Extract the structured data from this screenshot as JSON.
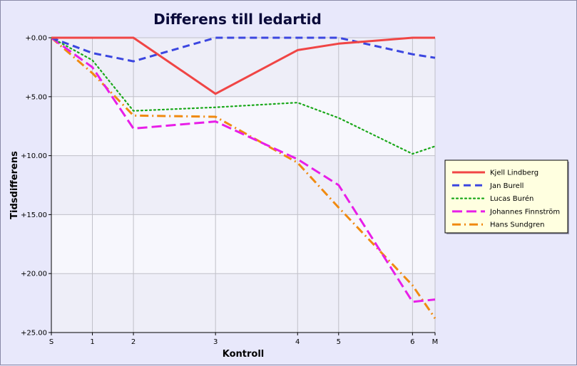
{
  "chart_data": {
    "type": "line",
    "title": "Differens till ledartid",
    "xlabel": "Kontroll",
    "ylabel": "Tidsdifferens",
    "x_categories": [
      "S",
      "1",
      "2",
      "3",
      "4",
      "5",
      "6",
      "M"
    ],
    "x_positions": [
      0,
      1,
      2,
      4,
      6,
      7,
      8.8,
      9.35
    ],
    "y_ticks": [
      "+0.00",
      "+5.00",
      "+10.00",
      "+15.00",
      "+20.00",
      "+25.00"
    ],
    "y_tick_values": [
      0,
      5,
      10,
      15,
      20,
      25
    ],
    "ylim": [
      0,
      25
    ],
    "y_inverted": true,
    "grid": true,
    "legend_position": "right",
    "series": [
      {
        "name": "Kjell Lindberg",
        "color": "#f04545",
        "style": "solid",
        "x": [
          0,
          1,
          2,
          4,
          6,
          7,
          8.8,
          9.35
        ],
        "y": [
          0,
          0,
          0,
          4.75,
          1.05,
          0.5,
          0,
          0
        ]
      },
      {
        "name": "Jan Burell",
        "color": "#3b46e0",
        "style": "dashed",
        "x": [
          0,
          1,
          2,
          4,
          6,
          7,
          8.8,
          9.35
        ],
        "y": [
          0,
          1.3,
          2.0,
          0,
          0,
          0,
          1.4,
          1.7
        ]
      },
      {
        "name": "Lucas Burén",
        "color": "#1aa81a",
        "style": "dotted",
        "x": [
          0,
          1,
          2,
          4,
          6,
          7,
          8.8,
          9.35
        ],
        "y": [
          0,
          1.9,
          6.2,
          5.9,
          5.5,
          6.8,
          9.85,
          9.2
        ]
      },
      {
        "name": "Johannes Finnström",
        "color": "#e81ee8",
        "style": "longdash",
        "x": [
          0,
          1,
          2,
          4,
          6,
          7,
          8.8,
          9.35
        ],
        "y": [
          0,
          2.5,
          7.7,
          7.1,
          10.3,
          12.5,
          22.4,
          22.2
        ]
      },
      {
        "name": "Hans Sundgren",
        "color": "#f08a10",
        "style": "dashdot",
        "x": [
          0,
          1,
          2,
          4,
          6,
          7,
          8.8,
          9.35
        ],
        "y": [
          0,
          3.0,
          6.6,
          6.7,
          10.6,
          14.4,
          21.0,
          23.8
        ]
      }
    ]
  }
}
